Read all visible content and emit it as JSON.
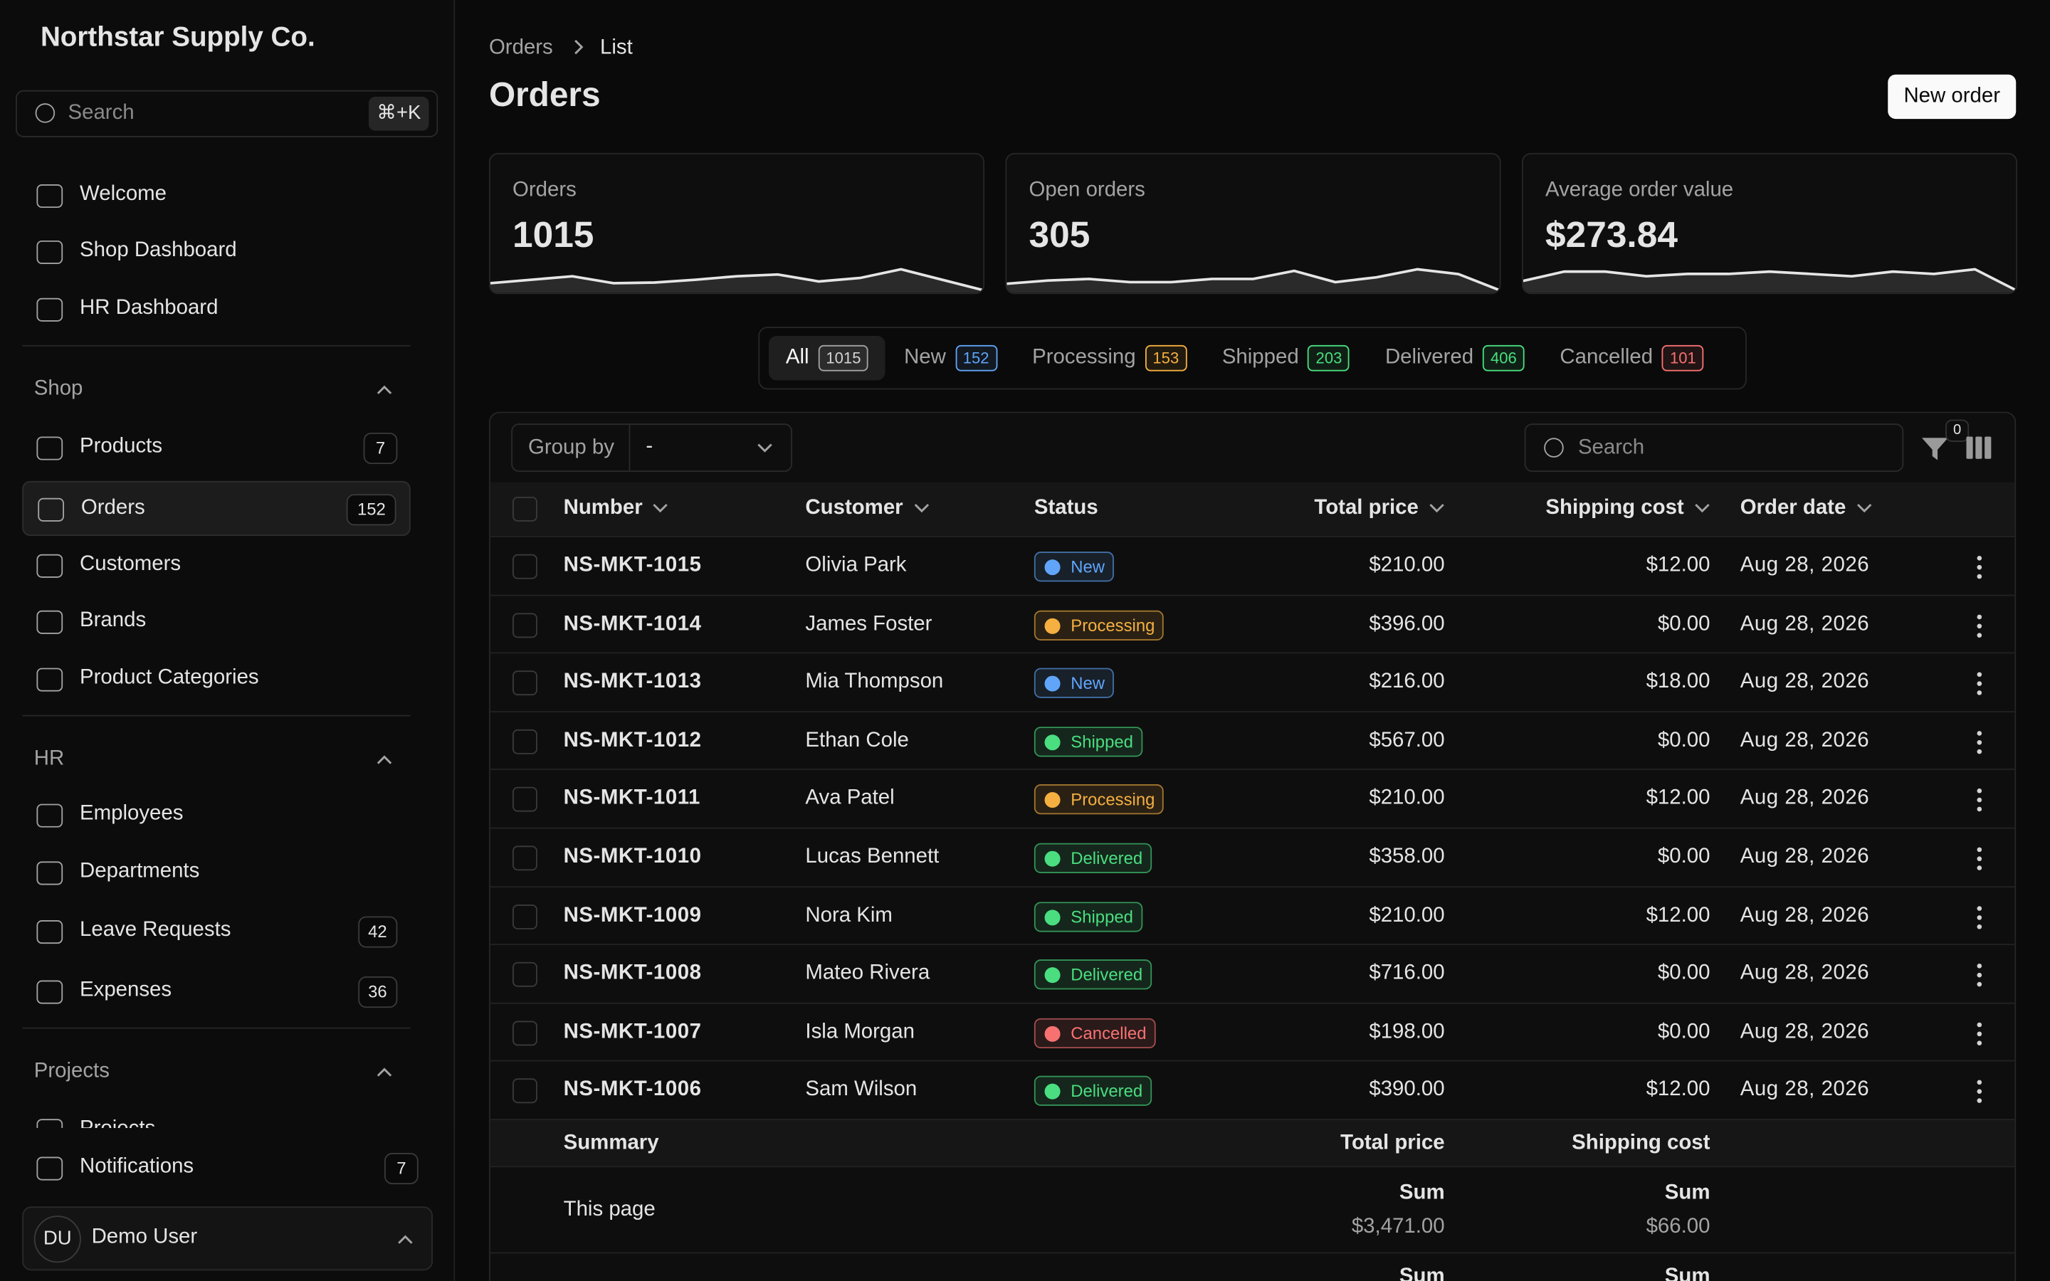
{
  "sidebar": {
    "brand": "Northstar Supply Co.",
    "search": {
      "placeholder": "Search",
      "shortcut": "⌘+K"
    },
    "top": [
      {
        "label": "Welcome"
      },
      {
        "label": "Shop Dashboard"
      },
      {
        "label": "HR Dashboard"
      }
    ],
    "sections": [
      {
        "title": "Shop",
        "items": [
          {
            "label": "Products",
            "badge": "7"
          },
          {
            "label": "Orders",
            "badge": "152",
            "active": true
          },
          {
            "label": "Customers"
          },
          {
            "label": "Brands"
          },
          {
            "label": "Product Categories"
          }
        ]
      },
      {
        "title": "HR",
        "items": [
          {
            "label": "Employees"
          },
          {
            "label": "Departments"
          },
          {
            "label": "Leave Requests",
            "badge": "42"
          },
          {
            "label": "Expenses",
            "badge": "36"
          }
        ]
      },
      {
        "title": "Projects",
        "items": [
          {
            "label": "Projects"
          }
        ]
      }
    ],
    "notifications": {
      "label": "Notifications",
      "badge": "7"
    },
    "user": {
      "initials": "DU",
      "name": "Demo User"
    }
  },
  "header": {
    "breadcrumb": [
      "Orders",
      "List"
    ],
    "title": "Orders",
    "button": "New order"
  },
  "stats": [
    {
      "label": "Orders",
      "value": "1015",
      "trend": [
        2,
        3,
        4,
        2,
        2.2,
        3,
        4,
        4.5,
        2.5,
        3.5,
        6,
        3,
        0
      ]
    },
    {
      "label": "Open orders",
      "value": "305",
      "trend": [
        2,
        3,
        3.5,
        2.5,
        2.5,
        3.5,
        3.5,
        6,
        2.5,
        4,
        6.5,
        5,
        0
      ]
    },
    {
      "label": "Average order value",
      "value": "$273.84",
      "trend": [
        2,
        4,
        4,
        3,
        3.5,
        3.5,
        4,
        3.5,
        3,
        4,
        3.5,
        4.5,
        0
      ]
    }
  ],
  "tabs": [
    {
      "label": "All",
      "count": "1015",
      "color": "#a3a3a3"
    },
    {
      "label": "New",
      "count": "152",
      "color": "#60a5fa"
    },
    {
      "label": "Processing",
      "count": "153",
      "color": "#f5b041"
    },
    {
      "label": "Shipped",
      "count": "203",
      "color": "#4ade80"
    },
    {
      "label": "Delivered",
      "count": "406",
      "color": "#4ade80"
    },
    {
      "label": "Cancelled",
      "count": "101",
      "color": "#f87171"
    }
  ],
  "toolbar": {
    "group_by": "Group by",
    "group_value": "-",
    "search": "Search",
    "filter_count": "0"
  },
  "table": {
    "columns": [
      "Number",
      "Customer",
      "Status",
      "Total price",
      "Shipping cost",
      "Order date"
    ],
    "rows": [
      [
        "NS-MKT-1015",
        "Olivia Park",
        "New",
        "$210.00",
        "$12.00",
        "Aug 28, 2026"
      ],
      [
        "NS-MKT-1014",
        "James Foster",
        "Processing",
        "$396.00",
        "$0.00",
        "Aug 28, 2026"
      ],
      [
        "NS-MKT-1013",
        "Mia Thompson",
        "New",
        "$216.00",
        "$18.00",
        "Aug 28, 2026"
      ],
      [
        "NS-MKT-1012",
        "Ethan Cole",
        "Shipped",
        "$567.00",
        "$0.00",
        "Aug 28, 2026"
      ],
      [
        "NS-MKT-1011",
        "Ava Patel",
        "Processing",
        "$210.00",
        "$12.00",
        "Aug 28, 2026"
      ],
      [
        "NS-MKT-1010",
        "Lucas Bennett",
        "Delivered",
        "$358.00",
        "$0.00",
        "Aug 28, 2026"
      ],
      [
        "NS-MKT-1009",
        "Nora Kim",
        "Shipped",
        "$210.00",
        "$12.00",
        "Aug 28, 2026"
      ],
      [
        "NS-MKT-1008",
        "Mateo Rivera",
        "Delivered",
        "$716.00",
        "$0.00",
        "Aug 28, 2026"
      ],
      [
        "NS-MKT-1007",
        "Isla Morgan",
        "Cancelled",
        "$198.00",
        "$0.00",
        "Aug 28, 2026"
      ],
      [
        "NS-MKT-1006",
        "Sam Wilson",
        "Delivered",
        "$390.00",
        "$12.00",
        "Aug 28, 2026"
      ]
    ],
    "summary": {
      "title": "Summary",
      "total": "Total price",
      "shipping": "Shipping cost",
      "page_label": "This page",
      "sum_label": "Sum",
      "page_total": "$3,471.00",
      "page_shipping": "$66.00"
    }
  }
}
